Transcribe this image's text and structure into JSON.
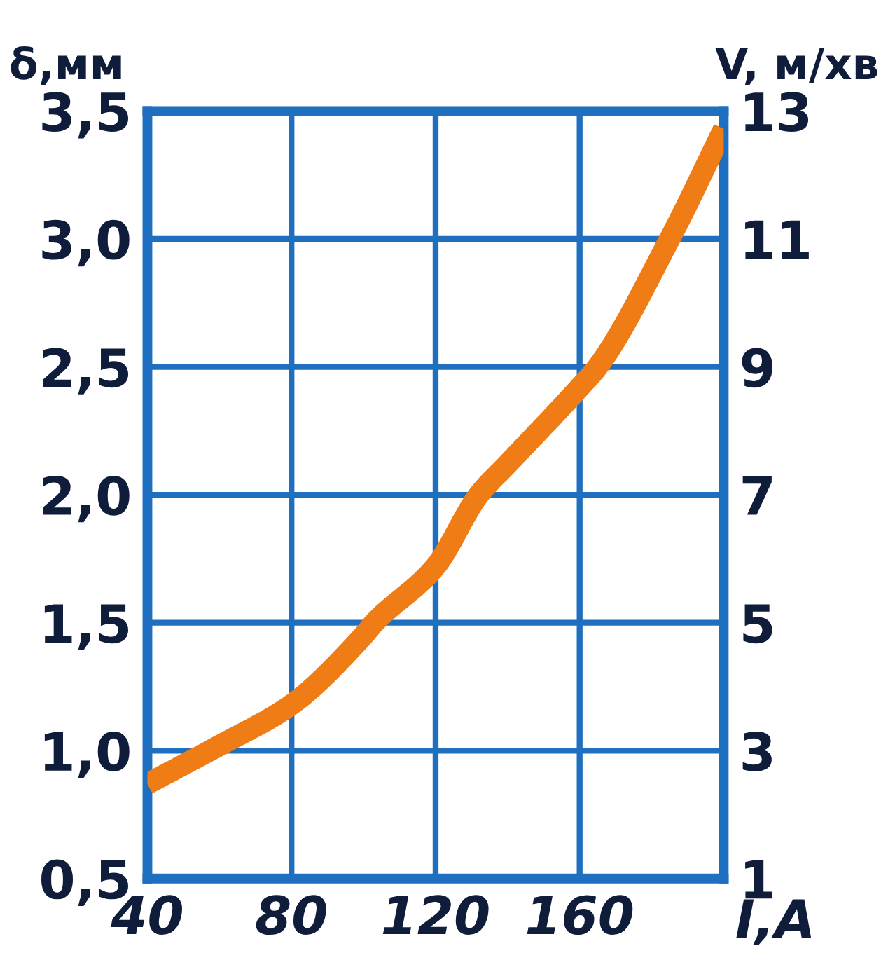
{
  "chart_data": {
    "type": "line",
    "xlabel": "I,A",
    "ylabel": "δ,мм",
    "y2label": "V, м/хв",
    "series": [
      {
        "color": "#f07c16",
        "x": [
          40,
          60,
          80,
          100,
          103,
          120,
          132,
          140,
          160,
          165,
          185,
          200
        ],
        "values": [
          0.87,
          1.02,
          1.18,
          1.45,
          1.5,
          1.72,
          2.0,
          2.12,
          2.42,
          2.5,
          3.0,
          3.43
        ]
      }
    ],
    "xlim": [
      40,
      200
    ],
    "xticks": [
      40,
      80,
      120,
      160
    ],
    "ylim": [
      0.5,
      3.5
    ],
    "yticks": [
      {
        "value": 0.5,
        "label": "0,5"
      },
      {
        "value": 1.0,
        "label": "1,0"
      },
      {
        "value": 1.5,
        "label": "1,5"
      },
      {
        "value": 2.0,
        "label": "2,0"
      },
      {
        "value": 2.5,
        "label": "2,5"
      },
      {
        "value": 3.0,
        "label": "3,0"
      },
      {
        "value": 3.5,
        "label": "3,5"
      }
    ],
    "y2lim": [
      1,
      13
    ],
    "y2ticks": [
      1,
      3,
      5,
      7,
      9,
      11,
      13
    ],
    "grid": true,
    "legend": false,
    "marker": "none",
    "line_style": "solid"
  }
}
